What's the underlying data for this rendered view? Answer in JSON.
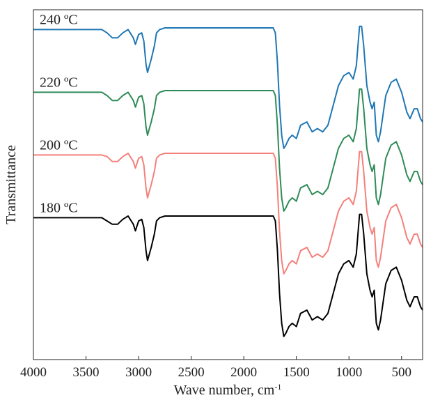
{
  "chart_data": {
    "type": "line",
    "title": "",
    "xlabel": "Wave number, cm",
    "xlabel_superscript": "-1",
    "ylabel": "Transmittance",
    "xlim": [
      4000,
      300
    ],
    "x_reversed": true,
    "x_ticks": [
      4000,
      3500,
      3000,
      2500,
      2000,
      1500,
      1000,
      500
    ],
    "x_tick_labels": [
      "4000",
      "3500",
      "3000",
      "2500",
      "2000",
      "1500",
      "1000",
      "500"
    ],
    "y_ticks_shown": false,
    "grid": false,
    "legend": "none",
    "series": [
      {
        "name": "180 ºC",
        "color": "#000000",
        "points": [
          [
            4000,
            0.65
          ],
          [
            3350,
            0.65
          ],
          [
            3300,
            0.64
          ],
          [
            3250,
            0.63
          ],
          [
            3200,
            0.63
          ],
          [
            3150,
            0.645
          ],
          [
            3100,
            0.655
          ],
          [
            3050,
            0.63
          ],
          [
            3030,
            0.61
          ],
          [
            3000,
            0.64
          ],
          [
            2970,
            0.645
          ],
          [
            2950,
            0.62
          ],
          [
            2930,
            0.55
          ],
          [
            2915,
            0.52
          ],
          [
            2880,
            0.56
          ],
          [
            2850,
            0.6
          ],
          [
            2830,
            0.64
          ],
          [
            2800,
            0.65
          ],
          [
            2750,
            0.655
          ],
          [
            1720,
            0.655
          ],
          [
            1700,
            0.64
          ],
          [
            1680,
            0.55
          ],
          [
            1660,
            0.42
          ],
          [
            1640,
            0.33
          ],
          [
            1620,
            0.29
          ],
          [
            1600,
            0.3
          ],
          [
            1570,
            0.32
          ],
          [
            1540,
            0.33
          ],
          [
            1500,
            0.32
          ],
          [
            1460,
            0.36
          ],
          [
            1400,
            0.37
          ],
          [
            1350,
            0.34
          ],
          [
            1300,
            0.35
          ],
          [
            1250,
            0.34
          ],
          [
            1200,
            0.36
          ],
          [
            1150,
            0.42
          ],
          [
            1100,
            0.48
          ],
          [
            1050,
            0.51
          ],
          [
            1000,
            0.52
          ],
          [
            960,
            0.5
          ],
          [
            930,
            0.54
          ],
          [
            900,
            0.66
          ],
          [
            880,
            0.66
          ],
          [
            860,
            0.6
          ],
          [
            830,
            0.48
          ],
          [
            800,
            0.43
          ],
          [
            780,
            0.41
          ],
          [
            760,
            0.43
          ],
          [
            740,
            0.33
          ],
          [
            720,
            0.31
          ],
          [
            700,
            0.34
          ],
          [
            650,
            0.45
          ],
          [
            600,
            0.49
          ],
          [
            550,
            0.5
          ],
          [
            500,
            0.46
          ],
          [
            450,
            0.4
          ],
          [
            420,
            0.38
          ],
          [
            380,
            0.41
          ],
          [
            350,
            0.41
          ],
          [
            320,
            0.38
          ],
          [
            300,
            0.37
          ]
        ]
      },
      {
        "name": "200 ºC",
        "color": "#F4807A",
        "points": [
          [
            4000,
            0.84
          ],
          [
            3350,
            0.84
          ],
          [
            3300,
            0.835
          ],
          [
            3250,
            0.82
          ],
          [
            3200,
            0.82
          ],
          [
            3150,
            0.835
          ],
          [
            3100,
            0.845
          ],
          [
            3050,
            0.82
          ],
          [
            3030,
            0.8
          ],
          [
            3000,
            0.83
          ],
          [
            2970,
            0.835
          ],
          [
            2950,
            0.81
          ],
          [
            2930,
            0.74
          ],
          [
            2915,
            0.71
          ],
          [
            2880,
            0.75
          ],
          [
            2850,
            0.79
          ],
          [
            2830,
            0.83
          ],
          [
            2800,
            0.84
          ],
          [
            2750,
            0.845
          ],
          [
            1720,
            0.845
          ],
          [
            1700,
            0.83
          ],
          [
            1680,
            0.74
          ],
          [
            1660,
            0.61
          ],
          [
            1640,
            0.52
          ],
          [
            1620,
            0.48
          ],
          [
            1600,
            0.49
          ],
          [
            1570,
            0.51
          ],
          [
            1540,
            0.52
          ],
          [
            1500,
            0.51
          ],
          [
            1460,
            0.55
          ],
          [
            1400,
            0.56
          ],
          [
            1350,
            0.53
          ],
          [
            1300,
            0.54
          ],
          [
            1250,
            0.53
          ],
          [
            1200,
            0.55
          ],
          [
            1150,
            0.61
          ],
          [
            1100,
            0.67
          ],
          [
            1050,
            0.7
          ],
          [
            1000,
            0.71
          ],
          [
            960,
            0.69
          ],
          [
            930,
            0.73
          ],
          [
            900,
            0.85
          ],
          [
            880,
            0.85
          ],
          [
            860,
            0.79
          ],
          [
            830,
            0.67
          ],
          [
            800,
            0.62
          ],
          [
            780,
            0.6
          ],
          [
            760,
            0.62
          ],
          [
            740,
            0.52
          ],
          [
            720,
            0.5
          ],
          [
            700,
            0.53
          ],
          [
            650,
            0.64
          ],
          [
            600,
            0.68
          ],
          [
            550,
            0.69
          ],
          [
            500,
            0.65
          ],
          [
            450,
            0.59
          ],
          [
            420,
            0.57
          ],
          [
            380,
            0.6
          ],
          [
            350,
            0.6
          ],
          [
            320,
            0.57
          ],
          [
            300,
            0.56
          ]
        ]
      },
      {
        "name": "220 ºC",
        "color": "#2E8B57",
        "points": [
          [
            4000,
            1.03
          ],
          [
            3350,
            1.03
          ],
          [
            3300,
            1.02
          ],
          [
            3250,
            1.005
          ],
          [
            3200,
            1.005
          ],
          [
            3150,
            1.02
          ],
          [
            3100,
            1.03
          ],
          [
            3050,
            1.005
          ],
          [
            3030,
            0.985
          ],
          [
            3000,
            1.015
          ],
          [
            2970,
            1.02
          ],
          [
            2950,
            0.995
          ],
          [
            2930,
            0.925
          ],
          [
            2915,
            0.9
          ],
          [
            2880,
            0.94
          ],
          [
            2850,
            0.98
          ],
          [
            2830,
            1.02
          ],
          [
            2800,
            1.03
          ],
          [
            2750,
            1.035
          ],
          [
            1720,
            1.035
          ],
          [
            1700,
            1.02
          ],
          [
            1680,
            0.93
          ],
          [
            1660,
            0.8
          ],
          [
            1640,
            0.71
          ],
          [
            1620,
            0.67
          ],
          [
            1600,
            0.68
          ],
          [
            1570,
            0.7
          ],
          [
            1540,
            0.71
          ],
          [
            1500,
            0.7
          ],
          [
            1460,
            0.74
          ],
          [
            1400,
            0.75
          ],
          [
            1350,
            0.72
          ],
          [
            1300,
            0.73
          ],
          [
            1250,
            0.72
          ],
          [
            1200,
            0.74
          ],
          [
            1150,
            0.8
          ],
          [
            1100,
            0.86
          ],
          [
            1050,
            0.89
          ],
          [
            1000,
            0.9
          ],
          [
            960,
            0.88
          ],
          [
            930,
            0.92
          ],
          [
            900,
            1.04
          ],
          [
            880,
            1.04
          ],
          [
            860,
            0.98
          ],
          [
            830,
            0.86
          ],
          [
            800,
            0.81
          ],
          [
            780,
            0.79
          ],
          [
            760,
            0.81
          ],
          [
            740,
            0.71
          ],
          [
            720,
            0.69
          ],
          [
            700,
            0.72
          ],
          [
            650,
            0.83
          ],
          [
            600,
            0.87
          ],
          [
            550,
            0.88
          ],
          [
            500,
            0.84
          ],
          [
            450,
            0.78
          ],
          [
            420,
            0.76
          ],
          [
            380,
            0.79
          ],
          [
            350,
            0.79
          ],
          [
            320,
            0.76
          ],
          [
            300,
            0.75
          ]
        ]
      },
      {
        "name": "240 ºC",
        "color": "#1F77B4",
        "points": [
          [
            4000,
            1.22
          ],
          [
            3350,
            1.22
          ],
          [
            3300,
            1.21
          ],
          [
            3250,
            1.195
          ],
          [
            3200,
            1.195
          ],
          [
            3150,
            1.21
          ],
          [
            3100,
            1.22
          ],
          [
            3050,
            1.195
          ],
          [
            3030,
            1.175
          ],
          [
            3000,
            1.205
          ],
          [
            2970,
            1.21
          ],
          [
            2950,
            1.185
          ],
          [
            2930,
            1.115
          ],
          [
            2915,
            1.09
          ],
          [
            2880,
            1.13
          ],
          [
            2850,
            1.17
          ],
          [
            2830,
            1.21
          ],
          [
            2800,
            1.22
          ],
          [
            2750,
            1.225
          ],
          [
            1720,
            1.225
          ],
          [
            1700,
            1.21
          ],
          [
            1680,
            1.12
          ],
          [
            1660,
            0.99
          ],
          [
            1640,
            0.9
          ],
          [
            1620,
            0.86
          ],
          [
            1600,
            0.87
          ],
          [
            1570,
            0.89
          ],
          [
            1540,
            0.9
          ],
          [
            1500,
            0.89
          ],
          [
            1460,
            0.93
          ],
          [
            1400,
            0.94
          ],
          [
            1350,
            0.91
          ],
          [
            1300,
            0.92
          ],
          [
            1250,
            0.91
          ],
          [
            1200,
            0.93
          ],
          [
            1150,
            0.99
          ],
          [
            1100,
            1.05
          ],
          [
            1050,
            1.08
          ],
          [
            1000,
            1.09
          ],
          [
            960,
            1.07
          ],
          [
            930,
            1.11
          ],
          [
            900,
            1.23
          ],
          [
            880,
            1.23
          ],
          [
            860,
            1.17
          ],
          [
            830,
            1.05
          ],
          [
            800,
            1.0
          ],
          [
            780,
            0.98
          ],
          [
            760,
            1.0
          ],
          [
            740,
            0.9
          ],
          [
            720,
            0.88
          ],
          [
            700,
            0.91
          ],
          [
            650,
            1.02
          ],
          [
            600,
            1.06
          ],
          [
            550,
            1.07
          ],
          [
            500,
            1.03
          ],
          [
            450,
            0.97
          ],
          [
            420,
            0.95
          ],
          [
            380,
            0.98
          ],
          [
            350,
            0.98
          ],
          [
            320,
            0.95
          ],
          [
            300,
            0.94
          ]
        ]
      }
    ],
    "series_labels": [
      {
        "series": 3,
        "text": "240 ºC"
      },
      {
        "series": 2,
        "text": "220 ºC"
      },
      {
        "series": 1,
        "text": "200 ºC"
      },
      {
        "series": 0,
        "text": "180 ºC"
      }
    ]
  }
}
